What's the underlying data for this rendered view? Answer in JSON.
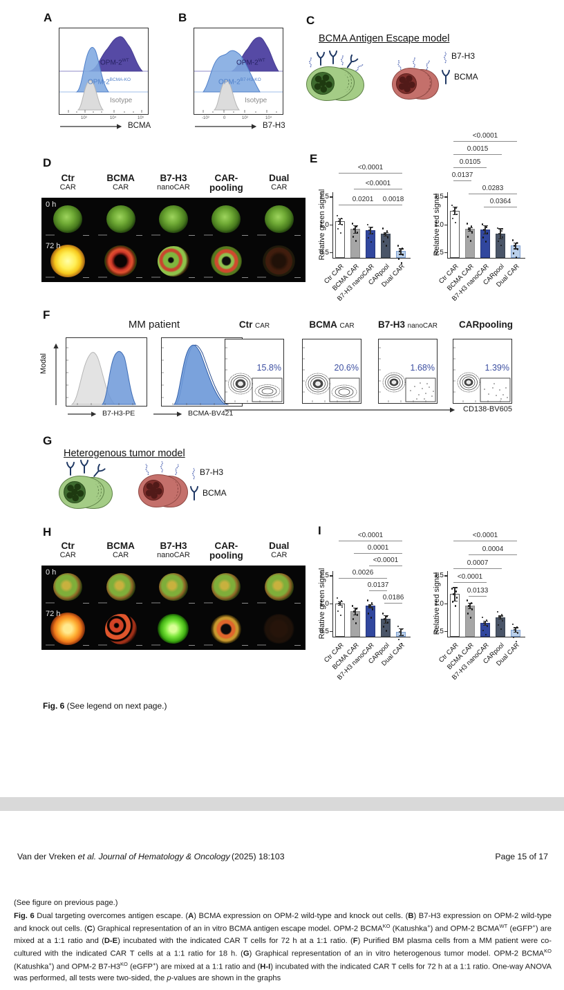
{
  "colors": {
    "wt_purple": "#564aa5",
    "ko_blue": "#7fa8e0",
    "isotype_grey": "#dcdcdc",
    "bar_colors": [
      "#ffffff",
      "#a6a6a6",
      "#31479e",
      "#4a5568",
      "#b9cfea"
    ],
    "pct_navy": "#3c4fa1",
    "green_cell": "#a4cc86",
    "red_cell": "#c4706b",
    "receptor_navy": "#1f3864",
    "receptor_blue": "#5a6fb8"
  },
  "panels": {
    "A": {
      "label": "A",
      "series": [
        {
          "name": "OPM-2",
          "sup": "WT"
        },
        {
          "name": "OPM-2",
          "sup": "BCMA-KO"
        },
        {
          "name": "Isotype",
          "sup": ""
        }
      ],
      "xlabel": "BCMA",
      "xticks": [
        "10³",
        "10⁴",
        "10⁵"
      ]
    },
    "B": {
      "label": "B",
      "series": [
        {
          "name": "OPM-2",
          "sup": "WT"
        },
        {
          "name": "OPM-2",
          "sup": "B7-H3-KO"
        },
        {
          "name": "Isotype",
          "sup": ""
        }
      ],
      "xlabel": "B7-H3",
      "xticks": [
        "-10³",
        "0",
        "10³",
        "10⁴"
      ]
    },
    "C": {
      "label": "C",
      "title": "BCMA Antigen Escape model",
      "legend": [
        {
          "icon": "b7h3-squiggle-icon",
          "label": "B7-H3"
        },
        {
          "icon": "bcma-y-icon",
          "label": "BCMA"
        }
      ]
    },
    "D": {
      "label": "D",
      "columns": [
        {
          "top": "Ctr",
          "bottom": "CAR"
        },
        {
          "top": "BCMA",
          "bottom": "CAR"
        },
        {
          "top": "B7-H3",
          "bottom": "nanoCAR"
        },
        {
          "top": "CAR-",
          "bottom": "pooling"
        },
        {
          "top": "Dual",
          "bottom": "CAR"
        }
      ],
      "rows": [
        "0 h",
        "72 h"
      ],
      "blobs0": [
        "green-speck",
        "green-speck",
        "green-speck",
        "green-speck",
        "green-speck"
      ],
      "blobs72": [
        "yellow-full",
        "red-ring",
        "green-red-mix",
        "green-core-red-ring",
        "sparse-dark"
      ]
    },
    "E": {
      "label": "E"
    },
    "F": {
      "label": "F",
      "title": "MM patient",
      "ylabel": "Modal",
      "hist": [
        {
          "xlabel": "B7-H3-PE"
        },
        {
          "xlabel": "BCMA-BV421"
        }
      ],
      "plots": [
        {
          "main": "Ctr",
          "sub": "CAR",
          "pct": "15.8%"
        },
        {
          "main": "BCMA",
          "sub": "CAR",
          "pct": "20.6%"
        },
        {
          "main": "B7-H3",
          "sub": "nanoCAR",
          "pct": "1.68%"
        },
        {
          "main": "CARpooling",
          "sub": "",
          "pct": "1.39%"
        }
      ],
      "xlabel": "CD138-BV605"
    },
    "G": {
      "label": "G",
      "title": "Heterogenous tumor model",
      "legend": [
        {
          "icon": "b7h3-squiggle-icon",
          "label": "B7-H3"
        },
        {
          "icon": "bcma-y-icon",
          "label": "BCMA"
        }
      ]
    },
    "H": {
      "label": "H",
      "columns": [
        {
          "top": "Ctr",
          "bottom": "CAR"
        },
        {
          "top": "BCMA",
          "bottom": "CAR"
        },
        {
          "top": "B7-H3",
          "bottom": "nanoCAR"
        },
        {
          "top": "CAR-",
          "bottom": "pooling"
        },
        {
          "top": "Dual",
          "bottom": "CAR"
        }
      ],
      "rows": [
        "0 h",
        "72 h"
      ],
      "blobs0": [
        "green-orange-speck",
        "green-orange-speck",
        "green-orange-speck",
        "green-orange-speck",
        "green-orange-speck"
      ],
      "blobs72": [
        "orange-full",
        "red-spots",
        "green-bright",
        "orange-ring",
        "faint-dark"
      ]
    },
    "I": {
      "label": "I"
    }
  },
  "chart_data": [
    {
      "type": "bar",
      "panel": "E",
      "title": "",
      "xlabel": "",
      "ylabel": "Relative green signal",
      "categories": [
        "Ctr CAR",
        "BCMA CAR",
        "B7-H3 nanoCAR",
        "CARpool",
        "Dual CAR"
      ],
      "values": [
        1.06,
        0.92,
        0.9,
        0.83,
        0.52
      ],
      "sem": [
        0.05,
        0.07,
        0.06,
        0.03,
        0.05
      ],
      "ylim": [
        0.4,
        1.5
      ],
      "yticks": [
        "0.5",
        "1.0",
        "1.5"
      ],
      "grid": false,
      "comparisons": [
        {
          "from": 0,
          "to": 4,
          "label": "<0.0001",
          "level": 3
        },
        {
          "from": 1,
          "to": 4,
          "label": "<0.0001",
          "level": 2
        },
        {
          "from": 0,
          "to": 3,
          "label": "0.0201",
          "level": 1
        },
        {
          "from": 3,
          "to": 4,
          "label": "0.0018",
          "level": 1
        }
      ]
    },
    {
      "type": "bar",
      "panel": "E",
      "title": "",
      "xlabel": "",
      "ylabel": "Relative red signal",
      "categories": [
        "Ctr CAR",
        "BCMA CAR",
        "B7-H3 nanoCAR",
        "CARpool",
        "Dual CAR"
      ],
      "values": [
        1.25,
        0.92,
        0.91,
        0.84,
        0.62
      ],
      "sem": [
        0.07,
        0.03,
        0.07,
        0.09,
        0.05
      ],
      "ylim": [
        0.4,
        1.5
      ],
      "yticks": [
        "0.5",
        "1.0",
        "1.5"
      ],
      "grid": false,
      "comparisons": [
        {
          "from": 0,
          "to": 4,
          "label": "<0.0001",
          "level": 6
        },
        {
          "from": 0,
          "to": 3,
          "label": "0.0015",
          "level": 5
        },
        {
          "from": 0,
          "to": 2,
          "label": "0.0105",
          "level": 4
        },
        {
          "from": 0,
          "to": 1,
          "label": "0.0137",
          "level": 3
        },
        {
          "from": 1,
          "to": 4,
          "label": "0.0283",
          "level": 2
        },
        {
          "from": 2,
          "to": 4,
          "label": "0.0364",
          "level": 1
        }
      ]
    },
    {
      "type": "bar",
      "panel": "I",
      "title": "",
      "xlabel": "",
      "ylabel": "Relative green signal",
      "categories": [
        "Ctr CAR",
        "BCMA CAR",
        "B7-H3 nanoCAR",
        "CARpool",
        "Dual CAR"
      ],
      "values": [
        1.0,
        0.86,
        0.96,
        0.72,
        0.49
      ],
      "sem": [
        0.03,
        0.06,
        0.03,
        0.07,
        0.06
      ],
      "ylim": [
        0.4,
        1.5
      ],
      "yticks": [
        "0.5",
        "1.0",
        "1.5"
      ],
      "grid": false,
      "comparisons": [
        {
          "from": 0,
          "to": 4,
          "label": "<0.0001",
          "level": 6
        },
        {
          "from": 1,
          "to": 4,
          "label": "0.0001",
          "level": 5
        },
        {
          "from": 2,
          "to": 4,
          "label": "<0.0001",
          "level": 4
        },
        {
          "from": 0,
          "to": 3,
          "label": "0.0026",
          "level": 3
        },
        {
          "from": 2,
          "to": 3,
          "label": "0.0137",
          "level": 2
        },
        {
          "from": 3,
          "to": 4,
          "label": "0.0186",
          "level": 1
        }
      ]
    },
    {
      "type": "bar",
      "panel": "I",
      "title": "",
      "xlabel": "",
      "ylabel": "Relative red signal",
      "categories": [
        "Ctr CAR",
        "BCMA CAR",
        "B7-H3 nanoCAR",
        "CARpool",
        "Dual CAR"
      ],
      "values": [
        1.17,
        0.96,
        0.65,
        0.75,
        0.53
      ],
      "sem": [
        0.12,
        0.05,
        0.04,
        0.03,
        0.04
      ],
      "ylim": [
        0.4,
        1.5
      ],
      "yticks": [
        "0.5",
        "1.0",
        "1.5"
      ],
      "grid": false,
      "comparisons": [
        {
          "from": 0,
          "to": 4,
          "label": "<0.0001",
          "level": 5
        },
        {
          "from": 1,
          "to": 4,
          "label": "0.0004",
          "level": 4
        },
        {
          "from": 0,
          "to": 3,
          "label": "0.0007",
          "level": 3
        },
        {
          "from": 0,
          "to": 2,
          "label": "<0.0001",
          "level": 2
        },
        {
          "from": 1,
          "to": 2,
          "label": "0.0133",
          "level": 1
        }
      ]
    }
  ],
  "fig_note": [
    {
      "t": "Fig. 6",
      "b": true
    },
    {
      "t": " (See legend on next page.)"
    }
  ],
  "footer": {
    "left": [
      {
        "t": "Van der Vreken "
      },
      {
        "t": "et al. Journal of Hematology & Oncology",
        "i": true
      }
    ],
    "center": "(2025) 18:103",
    "right": "Page 15 of 17"
  },
  "caption": {
    "pre": "(See figure on previous page.)",
    "segments": [
      {
        "t": "Fig. 6",
        "b": true
      },
      {
        "t": "  Dual targeting overcomes antigen escape. ("
      },
      {
        "t": "A",
        "b": true
      },
      {
        "t": ") BCMA expression on OPM-2 wild-type and knock out cells. ("
      },
      {
        "t": "B",
        "b": true
      },
      {
        "t": ") B7-H3 expression on OPM-2 wild-type and knock out cells. ("
      },
      {
        "t": "C",
        "b": true
      },
      {
        "t": ") Graphical representation of an in vitro BCMA antigen escape model. OPM-2 BCMA"
      },
      {
        "t": "KO",
        "sup": true
      },
      {
        "t": " (Katushka"
      },
      {
        "t": "+",
        "sup": true
      },
      {
        "t": ") and OPM-2 BCMA"
      },
      {
        "t": "WT",
        "sup": true
      },
      {
        "t": " (eGFP"
      },
      {
        "t": "+",
        "sup": true
      },
      {
        "t": ") are mixed at a 1:1 ratio and ("
      },
      {
        "t": "D-E",
        "b": true
      },
      {
        "t": ") incubated with the indicated CAR T cells for 72 h at a 1:1 ratio. ("
      },
      {
        "t": "F",
        "b": true
      },
      {
        "t": ") Purified BM plasma cells from a MM patient were co-cultured with the indicated CAR T cells at a 1:1 ratio for 18 h. ("
      },
      {
        "t": "G",
        "b": true
      },
      {
        "t": ") Graphical representation of an in vitro heterogenous tumor model. OPM-2 BCMA"
      },
      {
        "t": "KO",
        "sup": true
      },
      {
        "t": " (Katushka"
      },
      {
        "t": "+",
        "sup": true
      },
      {
        "t": ") and OPM-2 B7-H3"
      },
      {
        "t": "KO",
        "sup": true
      },
      {
        "t": " (eGFP"
      },
      {
        "t": "+",
        "sup": true
      },
      {
        "t": ") are mixed at a 1:1 ratio and ("
      },
      {
        "t": "H-I",
        "b": true
      },
      {
        "t": ") incubated with the indicated CAR T cells for 72 h at a 1:1 ratio. One-way ANOVA was performed, all tests were two-sided, the "
      },
      {
        "t": "p",
        "i": true
      },
      {
        "t": "-values are shown in the graphs"
      }
    ]
  }
}
